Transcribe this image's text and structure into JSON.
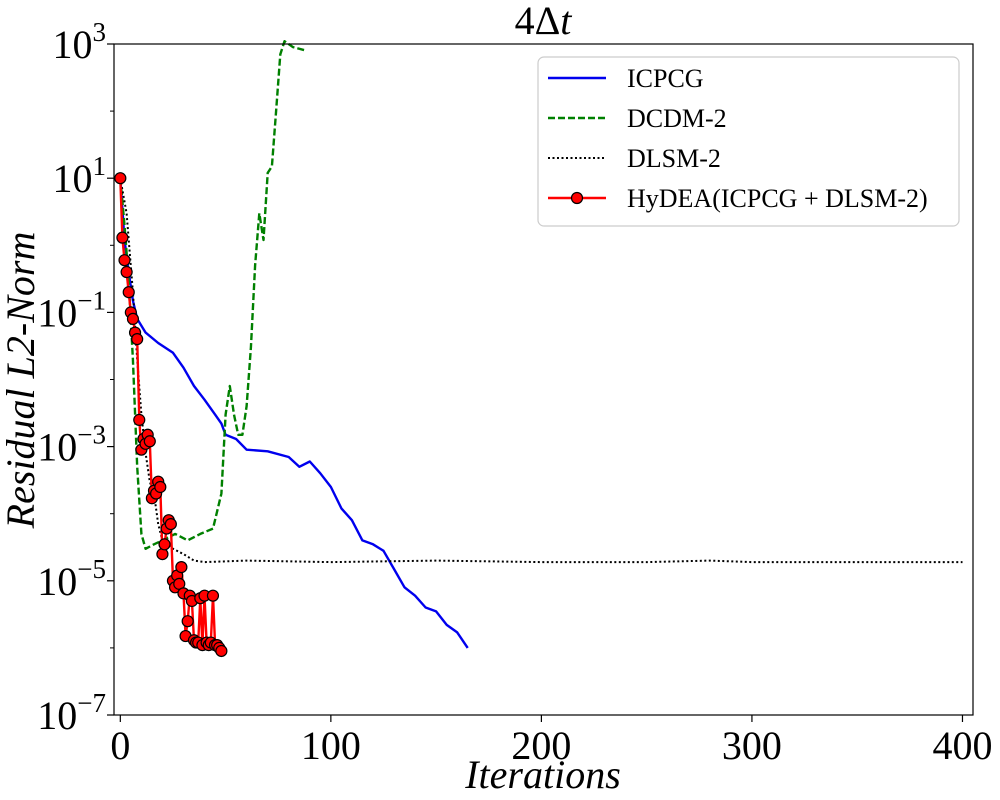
{
  "chart_data": {
    "type": "line",
    "title": "4Δt",
    "xlabel": "Iterations",
    "ylabel": "Residual L2-Norm",
    "xlim": [
      -3,
      405
    ],
    "ylim_log10": [
      -7,
      3
    ],
    "yscale": "log",
    "xticks": [
      0,
      100,
      200,
      300,
      400
    ],
    "xtick_labels": [
      "0",
      "100",
      "200",
      "300",
      "400"
    ],
    "yticks_log10": [
      -7,
      -5,
      -3,
      -1,
      1,
      3
    ],
    "ytick_base": "10",
    "ytick_exponents": [
      "−7",
      "−5",
      "−3",
      "−1",
      "1",
      "3"
    ],
    "grid": false,
    "legend_position": "top-right",
    "series": [
      {
        "name": "ICPCG",
        "color": "#0000ee",
        "style": "solid",
        "points": [
          [
            0,
            10
          ],
          [
            2,
            1.2
          ],
          [
            4,
            0.4
          ],
          [
            6,
            0.15
          ],
          [
            8,
            0.08
          ],
          [
            12,
            0.05
          ],
          [
            18,
            0.035
          ],
          [
            25,
            0.025
          ],
          [
            30,
            0.015
          ],
          [
            35,
            0.008
          ],
          [
            40,
            0.005
          ],
          [
            45,
            0.003
          ],
          [
            48,
            0.0022
          ],
          [
            50,
            0.0015
          ],
          [
            55,
            0.0013
          ],
          [
            60,
            0.0009
          ],
          [
            70,
            0.00085
          ],
          [
            80,
            0.0007
          ],
          [
            85,
            0.0005
          ],
          [
            90,
            0.0006
          ],
          [
            95,
            0.0004
          ],
          [
            100,
            0.00025
          ],
          [
            105,
            0.00012
          ],
          [
            110,
            8e-05
          ],
          [
            115,
            4e-05
          ],
          [
            120,
            3.5e-05
          ],
          [
            125,
            2.8e-05
          ],
          [
            130,
            1.5e-05
          ],
          [
            135,
            8e-06
          ],
          [
            140,
            6e-06
          ],
          [
            145,
            4e-06
          ],
          [
            150,
            3.5e-06
          ],
          [
            155,
            2.2e-06
          ],
          [
            160,
            1.7e-06
          ],
          [
            165,
            1e-06
          ]
        ]
      },
      {
        "name": "DCDM-2",
        "color": "#008000",
        "style": "dashed",
        "points": [
          [
            0,
            10
          ],
          [
            2,
            2
          ],
          [
            4,
            0.3
          ],
          [
            6,
            0.02
          ],
          [
            8,
            0.0005
          ],
          [
            10,
            5e-05
          ],
          [
            12,
            3e-05
          ],
          [
            16,
            3.5e-05
          ],
          [
            20,
            4e-05
          ],
          [
            26,
            5e-05
          ],
          [
            32,
            4e-05
          ],
          [
            38,
            5e-05
          ],
          [
            44,
            6e-05
          ],
          [
            48,
            0.0002
          ],
          [
            50,
            0.003
          ],
          [
            52,
            0.008
          ],
          [
            54,
            0.003
          ],
          [
            56,
            0.0015
          ],
          [
            58,
            0.0015
          ],
          [
            60,
            0.004
          ],
          [
            62,
            0.03
          ],
          [
            64,
            0.5
          ],
          [
            66,
            3
          ],
          [
            68,
            1.2
          ],
          [
            70,
            12
          ],
          [
            72,
            15
          ],
          [
            74,
            100
          ],
          [
            76,
            700
          ],
          [
            78,
            1100
          ],
          [
            82,
            900
          ],
          [
            88,
            800
          ]
        ]
      },
      {
        "name": "DLSM-2",
        "color": "#000000",
        "style": "dotted",
        "points": [
          [
            0,
            10
          ],
          [
            3,
            3
          ],
          [
            6,
            0.2
          ],
          [
            8,
            0.02
          ],
          [
            10,
            0.003
          ],
          [
            12,
            0.0008
          ],
          [
            14,
            0.0003
          ],
          [
            16,
            0.0002
          ],
          [
            18,
            7e-05
          ],
          [
            20,
            4e-05
          ],
          [
            25,
            3e-05
          ],
          [
            30,
            2.5e-05
          ],
          [
            35,
            2e-05
          ],
          [
            40,
            1.9e-05
          ],
          [
            60,
            2e-05
          ],
          [
            100,
            1.9e-05
          ],
          [
            150,
            2e-05
          ],
          [
            200,
            1.9e-05
          ],
          [
            250,
            1.9e-05
          ],
          [
            280,
            2e-05
          ],
          [
            300,
            1.9e-05
          ],
          [
            350,
            1.9e-05
          ],
          [
            400,
            1.9e-05
          ]
        ]
      },
      {
        "name": "HyDEA(ICPCG + DLSM-2)",
        "color": "#ff0000",
        "style": "solid-marker",
        "marker_face": "#ff0000",
        "marker_edge": "#000000",
        "points": [
          [
            0,
            10
          ],
          [
            1,
            1.3
          ],
          [
            2,
            0.6
          ],
          [
            3,
            0.4
          ],
          [
            4,
            0.2
          ],
          [
            5,
            0.1
          ],
          [
            6,
            0.08
          ],
          [
            7,
            0.05
          ],
          [
            8,
            0.04
          ],
          [
            9,
            0.0025
          ],
          [
            10,
            0.0009
          ],
          [
            11,
            0.0013
          ],
          [
            12,
            0.0011
          ],
          [
            13,
            0.0015
          ],
          [
            14,
            0.0012
          ],
          [
            15,
            0.00017
          ],
          [
            16,
            0.00022
          ],
          [
            17,
            0.0002
          ],
          [
            18,
            0.0003
          ],
          [
            19,
            0.00025
          ],
          [
            20,
            2.5e-05
          ],
          [
            21,
            3.5e-05
          ],
          [
            22,
            6e-05
          ],
          [
            23,
            8e-05
          ],
          [
            24,
            7e-05
          ],
          [
            25,
            1e-05
          ],
          [
            26,
            8e-06
          ],
          [
            27,
            1.2e-05
          ],
          [
            28,
            9e-06
          ],
          [
            29,
            1.6e-05
          ],
          [
            30,
            6.5e-06
          ],
          [
            31,
            1.5e-06
          ],
          [
            32,
            2.5e-06
          ],
          [
            33,
            6e-06
          ],
          [
            34,
            5e-06
          ],
          [
            35,
            1.3e-06
          ],
          [
            36,
            1.2e-06
          ],
          [
            37,
            1.2e-06
          ],
          [
            38,
            5.5e-06
          ],
          [
            39,
            1.1e-06
          ],
          [
            40,
            6e-06
          ],
          [
            41,
            1.2e-06
          ],
          [
            42,
            1.1e-06
          ],
          [
            43,
            1.2e-06
          ],
          [
            44,
            6e-06
          ],
          [
            45,
            1.1e-06
          ],
          [
            46,
            1.1e-06
          ],
          [
            47,
            1e-06
          ],
          [
            48,
            9e-07
          ]
        ]
      }
    ]
  }
}
